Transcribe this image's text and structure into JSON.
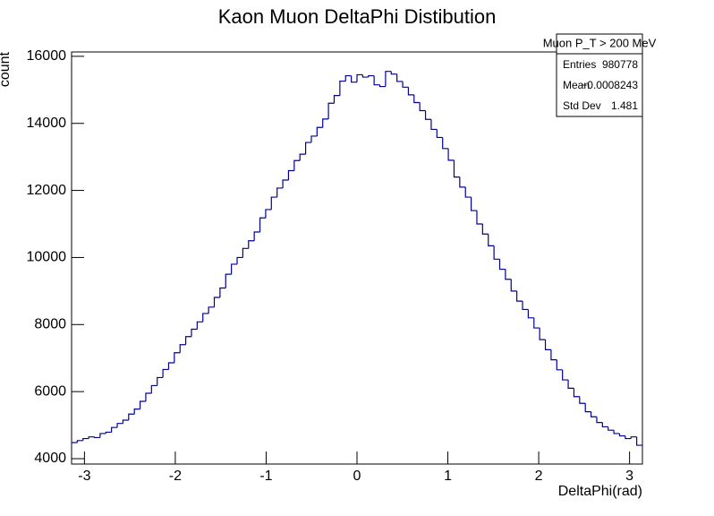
{
  "chart_data": {
    "type": "histogram",
    "title": "Kaon Muon DeltaPhi Distibution",
    "x_label": "DeltaPhi(rad)",
    "y_label": "count",
    "color": "#000099",
    "bins": [
      -3.1416,
      -3.0788,
      -3.0159,
      -2.9531,
      -2.8903,
      -2.8274,
      -2.7646,
      -2.7018,
      -2.6389,
      -2.5761,
      -2.5133,
      -2.4504,
      -2.3876,
      -2.3248,
      -2.2619,
      -2.1991,
      -2.1363,
      -2.0735,
      -2.0106,
      -1.9478,
      -1.885,
      -1.8221,
      -1.7593,
      -1.6965,
      -1.6336,
      -1.5708,
      -1.508,
      -1.4451,
      -1.3823,
      -1.3195,
      -1.2566,
      -1.1938,
      -1.131,
      -1.0681,
      -1.0053,
      -0.9425,
      -0.8796,
      -0.8168,
      -0.754,
      -0.6912,
      -0.6283,
      -0.5655,
      -0.5027,
      -0.4398,
      -0.377,
      -0.3142,
      -0.2513,
      -0.1885,
      -0.1257,
      -0.0628,
      0,
      0.0628,
      0.1257,
      0.1885,
      0.2513,
      0.3142,
      0.377,
      0.4398,
      0.5027,
      0.5655,
      0.6283,
      0.6912,
      0.754,
      0.8168,
      0.8796,
      0.9425,
      1.0053,
      1.0681,
      1.131,
      1.1938,
      1.2566,
      1.3195,
      1.3823,
      1.4451,
      1.508,
      1.5708,
      1.6336,
      1.6965,
      1.7593,
      1.8221,
      1.885,
      1.9478,
      2.0106,
      2.0735,
      2.1363,
      2.1991,
      2.2619,
      2.3248,
      2.3876,
      2.4504,
      2.5133,
      2.5761,
      2.6389,
      2.7018,
      2.7646,
      2.8274,
      2.8903,
      2.9531,
      3.0159,
      3.0788,
      3.1416
    ],
    "values": [
      4480,
      4540,
      4600,
      4650,
      4630,
      4750,
      4790,
      4930,
      5050,
      5150,
      5330,
      5480,
      5710,
      5950,
      6180,
      6420,
      6660,
      6860,
      7160,
      7400,
      7640,
      7860,
      8080,
      8330,
      8520,
      8810,
      9090,
      9500,
      9800,
      10000,
      10270,
      10500,
      10760,
      11180,
      11430,
      11800,
      12070,
      12310,
      12590,
      12890,
      13080,
      13430,
      13620,
      13880,
      14130,
      14600,
      14830,
      15260,
      15420,
      15230,
      15450,
      15380,
      15420,
      15150,
      15100,
      15550,
      15470,
      15250,
      15080,
      14850,
      14620,
      14380,
      14120,
      13820,
      13580,
      13250,
      12900,
      12400,
      12100,
      11800,
      11400,
      11000,
      10700,
      10350,
      9950,
      9650,
      9350,
      9000,
      8700,
      8450,
      8200,
      7900,
      7550,
      7250,
      6950,
      6650,
      6350,
      6100,
      5850,
      5650,
      5400,
      5250,
      5080,
      4950,
      4850,
      4750,
      4680,
      4600,
      4650,
      4400
    ],
    "xlim": [
      -3.1416,
      3.1416
    ],
    "xticks": [
      -3,
      -2,
      -1,
      0,
      1,
      2,
      3
    ],
    "ylim": [
      3840,
      16130
    ],
    "yticks": [
      4000,
      6000,
      8000,
      10000,
      12000,
      14000,
      16000
    ],
    "stats": {
      "title": "Muon P_T > 200 MeV",
      "entries_label": "Entries",
      "entries": 980778,
      "mean_label": "Mean",
      "mean": {
        "value": -0.0008243,
        "label": "−0.0008243"
      },
      "std_label": "Std Dev",
      "std": 1.481
    }
  }
}
